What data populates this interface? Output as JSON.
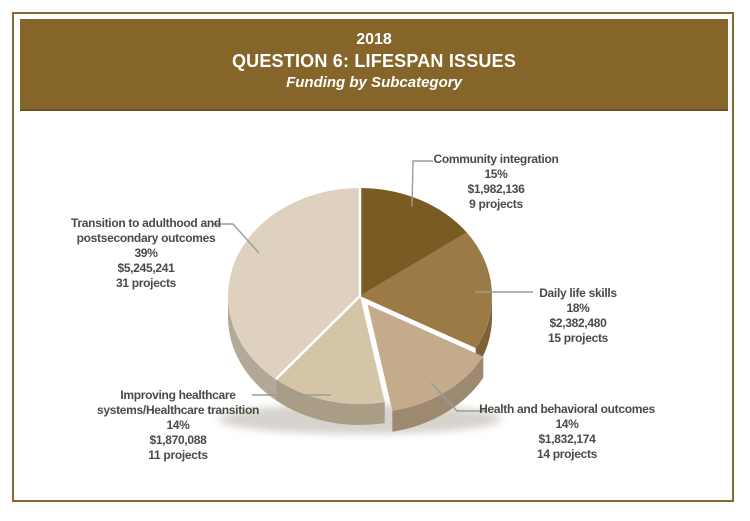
{
  "header": {
    "year": "2018",
    "title": "QUESTION 6: LIFESPAN ISSUES",
    "subtitle": "Funding by Subcategory",
    "band_color": "#86652A",
    "text_color": "#FFFFFF"
  },
  "chart_data": {
    "type": "pie",
    "title": "2018 Question 6: Lifespan Issues — Funding by Subcategory",
    "unit": "USD",
    "direction": "clockwise",
    "start_angle_deg": 0,
    "legend_position": "callout-labels",
    "slices": [
      {
        "label": "Community integration",
        "percent": 15,
        "amount": 1982136,
        "amount_label": "$1,982,136",
        "projects": 9,
        "projects_label": "9 projects",
        "color": "#7B5B24",
        "exploded": false
      },
      {
        "label": "Daily life skills",
        "percent": 18,
        "amount": 2382480,
        "amount_label": "$2,382,480",
        "projects": 15,
        "projects_label": "15 projects",
        "color": "#9C7A46",
        "exploded": false
      },
      {
        "label": "Health and behavioral outcomes",
        "percent": 14,
        "amount": 1832174,
        "amount_label": "$1,832,174",
        "projects": 14,
        "projects_label": "14 projects",
        "color": "#C3AB8C",
        "exploded": true
      },
      {
        "label": "Improving healthcare systems/Healthcare transition",
        "percent": 14,
        "amount": 1870088,
        "amount_label": "$1,870,088",
        "projects": 11,
        "projects_label": "11 projects",
        "color": "#D4C4A8",
        "exploded": false
      },
      {
        "label": "Transition to adulthood and postsecondary outcomes",
        "percent": 39,
        "amount": 5245241,
        "amount_label": "$5,245,241",
        "projects": 31,
        "projects_label": "31 projects",
        "color": "#DED2BE",
        "exploded": false
      }
    ]
  },
  "callouts": [
    {
      "id": "community-integration",
      "lines": [
        "Community integration",
        "15%",
        "$1,982,136",
        "9 projects"
      ]
    },
    {
      "id": "daily-life-skills",
      "lines": [
        "Daily life skills",
        "18%",
        "$2,382,480",
        "15 projects"
      ]
    },
    {
      "id": "health-behavioral-outcomes",
      "lines": [
        "Health and behavioral outcomes",
        "14%",
        "$1,832,174",
        "14 projects"
      ]
    },
    {
      "id": "improving-healthcare",
      "lines": [
        "Improving healthcare",
        "systems/Healthcare transition",
        "14%",
        "$1,870,088",
        "11 projects"
      ]
    },
    {
      "id": "transition-adulthood",
      "lines": [
        "Transition to adulthood and",
        "postsecondary outcomes",
        "39%",
        "$5,245,241",
        "31 projects"
      ]
    }
  ],
  "colors": {
    "page_border": "#8A672E",
    "label_text": "#4D4A44",
    "leader_line": "#9B9B99",
    "shadow": "#9A9183"
  }
}
